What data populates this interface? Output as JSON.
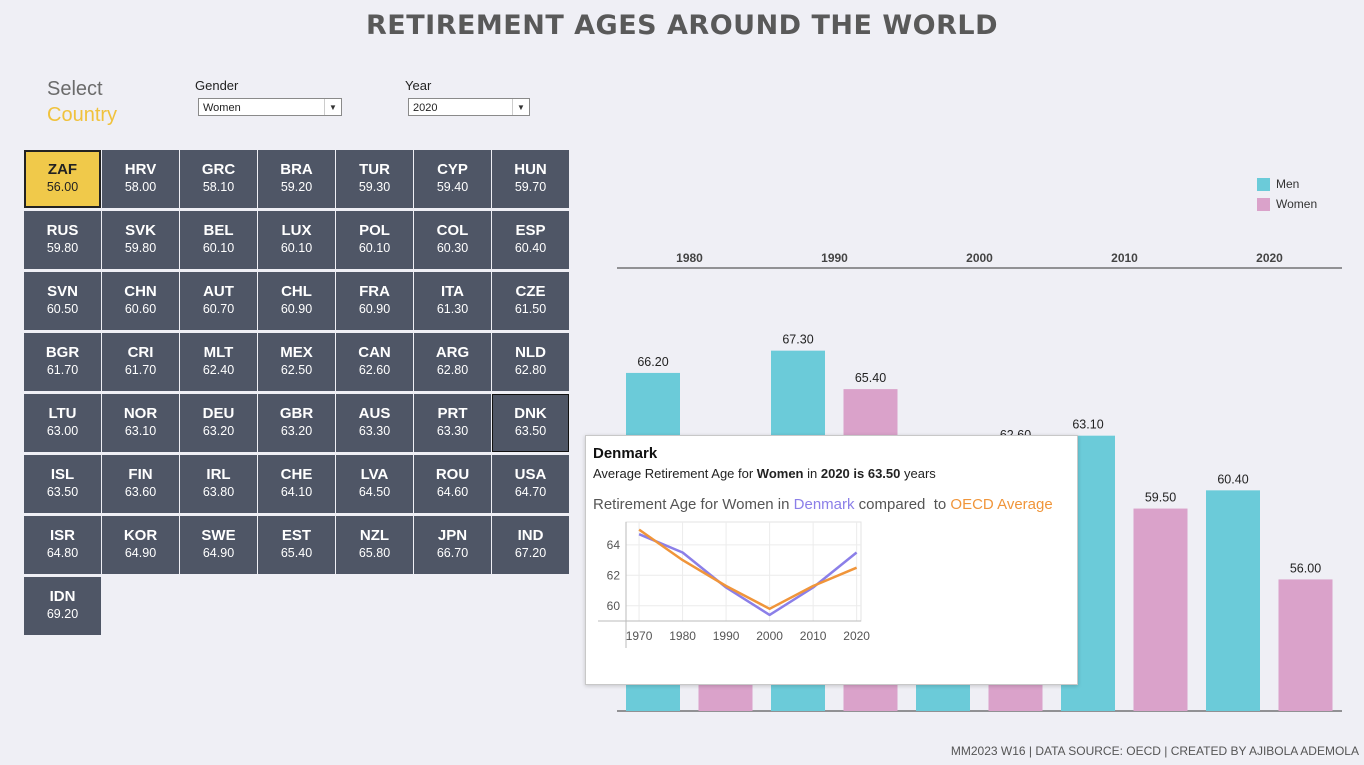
{
  "title": "RETIREMENT AGES AROUND THE WORLD",
  "select": {
    "line1": "Select",
    "line2": "Country"
  },
  "filters": {
    "gender": {
      "label": "Gender",
      "value": "Women"
    },
    "year": {
      "label": "Year",
      "value": "2020"
    }
  },
  "countries": [
    {
      "code": "ZAF",
      "value": "56.00"
    },
    {
      "code": "HRV",
      "value": "58.00"
    },
    {
      "code": "GRC",
      "value": "58.10"
    },
    {
      "code": "BRA",
      "value": "59.20"
    },
    {
      "code": "TUR",
      "value": "59.30"
    },
    {
      "code": "CYP",
      "value": "59.40"
    },
    {
      "code": "HUN",
      "value": "59.70"
    },
    {
      "code": "RUS",
      "value": "59.80"
    },
    {
      "code": "SVK",
      "value": "59.80"
    },
    {
      "code": "BEL",
      "value": "60.10"
    },
    {
      "code": "LUX",
      "value": "60.10"
    },
    {
      "code": "POL",
      "value": "60.10"
    },
    {
      "code": "COL",
      "value": "60.30"
    },
    {
      "code": "ESP",
      "value": "60.40"
    },
    {
      "code": "SVN",
      "value": "60.50"
    },
    {
      "code": "CHN",
      "value": "60.60"
    },
    {
      "code": "AUT",
      "value": "60.70"
    },
    {
      "code": "CHL",
      "value": "60.90"
    },
    {
      "code": "FRA",
      "value": "60.90"
    },
    {
      "code": "ITA",
      "value": "61.30"
    },
    {
      "code": "CZE",
      "value": "61.50"
    },
    {
      "code": "BGR",
      "value": "61.70"
    },
    {
      "code": "CRI",
      "value": "61.70"
    },
    {
      "code": "MLT",
      "value": "62.40"
    },
    {
      "code": "MEX",
      "value": "62.50"
    },
    {
      "code": "CAN",
      "value": "62.60"
    },
    {
      "code": "ARG",
      "value": "62.80"
    },
    {
      "code": "NLD",
      "value": "62.80"
    },
    {
      "code": "LTU",
      "value": "63.00"
    },
    {
      "code": "NOR",
      "value": "63.10"
    },
    {
      "code": "DEU",
      "value": "63.20"
    },
    {
      "code": "GBR",
      "value": "63.20"
    },
    {
      "code": "AUS",
      "value": "63.30"
    },
    {
      "code": "PRT",
      "value": "63.30"
    },
    {
      "code": "DNK",
      "value": "63.50"
    },
    {
      "code": "ISL",
      "value": "63.50"
    },
    {
      "code": "FIN",
      "value": "63.60"
    },
    {
      "code": "IRL",
      "value": "63.80"
    },
    {
      "code": "CHE",
      "value": "64.10"
    },
    {
      "code": "LVA",
      "value": "64.50"
    },
    {
      "code": "ROU",
      "value": "64.60"
    },
    {
      "code": "USA",
      "value": "64.70"
    },
    {
      "code": "ISR",
      "value": "64.80"
    },
    {
      "code": "KOR",
      "value": "64.90"
    },
    {
      "code": "SWE",
      "value": "64.90"
    },
    {
      "code": "EST",
      "value": "65.40"
    },
    {
      "code": "NZL",
      "value": "65.80"
    },
    {
      "code": "JPN",
      "value": "66.70"
    },
    {
      "code": "IND",
      "value": "67.20"
    },
    {
      "code": "IDN",
      "value": "69.20"
    }
  ],
  "selected_country": "ZAF",
  "hovered_country": "DNK",
  "colors": {
    "men": "#6bcbd9",
    "women": "#daa2ca",
    "selected": "#f0c94a",
    "tile": "#4f5666",
    "country_line": "#8b7fe8",
    "oecd_line": "#f0953a"
  },
  "chart_data": [
    {
      "type": "bar",
      "categories": [
        "1980",
        "1990",
        "2000",
        "2010",
        "2020"
      ],
      "series": [
        {
          "name": "Men",
          "values": [
            66.2,
            67.3,
            62.2,
            63.1,
            60.4
          ]
        },
        {
          "name": "Women",
          "values": [
            62.0,
            65.4,
            62.6,
            59.5,
            56.0
          ]
        }
      ],
      "value_labels": {
        "Men": [
          "66.20",
          "67.30",
          "62.20",
          "63.10",
          "60.40"
        ],
        "Women": [
          "62.00",
          "65.40",
          "62.60",
          "59.50",
          "56.00"
        ]
      },
      "title": "",
      "xlabel": "",
      "ylabel": "",
      "legend": "top-right",
      "ylim": [
        0,
        70
      ]
    },
    {
      "type": "line",
      "title": "Retirement Age for Women in Denmark compared  to OECD Average",
      "x": [
        1970,
        1980,
        1990,
        2000,
        2010,
        2020
      ],
      "series": [
        {
          "name": "Denmark",
          "values": [
            64.7,
            63.5,
            61.2,
            59.4,
            61.2,
            63.5
          ]
        },
        {
          "name": "OECD Average",
          "values": [
            65.0,
            63.0,
            61.3,
            59.8,
            61.3,
            62.5
          ]
        }
      ],
      "xticks": [
        "1970",
        "1980",
        "1990",
        "2000",
        "2010",
        "2020"
      ],
      "yticks": [
        "60",
        "62",
        "64"
      ],
      "ylim": [
        59.0,
        65.5
      ],
      "xlim": [
        1967,
        2021
      ],
      "grid": true
    }
  ],
  "tooltip": {
    "country": "Denmark",
    "line_prefix": "Average Retirement Age for ",
    "gender": "Women",
    "line_in": " in ",
    "year_is": "2020 is 63.50",
    "line_suffix": " years",
    "sub_prefix": "Retirement Age for Women in ",
    "sub_country": "Denmark",
    "sub_mid": " compared  to ",
    "sub_avg": "OECD Average"
  },
  "footer": "MM2023 W16 | DATA SOURCE: OECD | CREATED BY AJIBOLA ADEMOLA"
}
